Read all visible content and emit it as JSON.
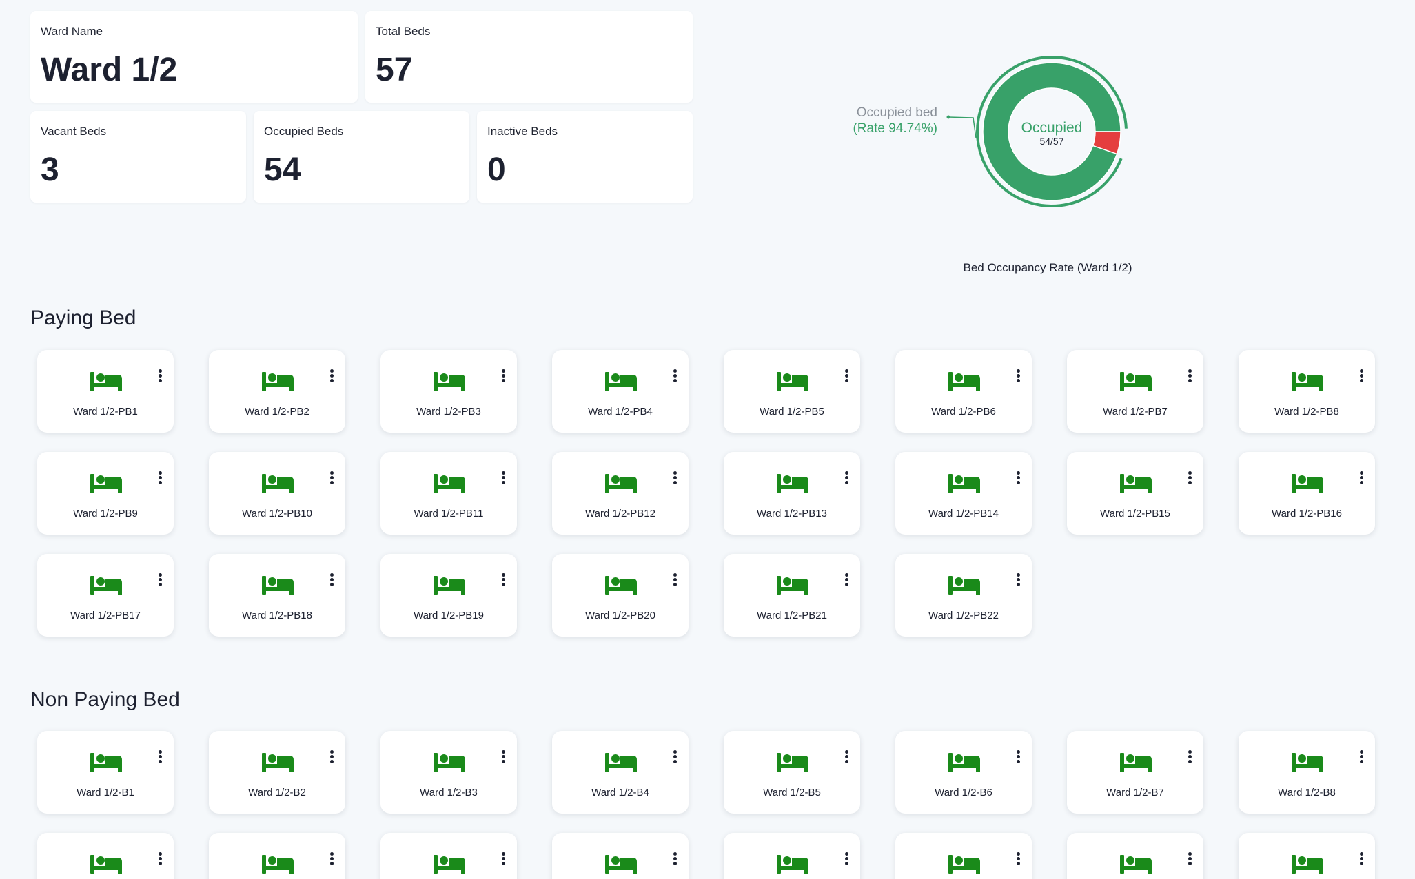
{
  "stats": {
    "ward_name": {
      "label": "Ward Name",
      "value": "Ward 1/2"
    },
    "total_beds": {
      "label": "Total Beds",
      "value": "57"
    },
    "vacant_beds": {
      "label": "Vacant Beds",
      "value": "3"
    },
    "occupied_beds": {
      "label": "Occupied Beds",
      "value": "54"
    },
    "inactive_beds": {
      "label": "Inactive Beds",
      "value": "0"
    }
  },
  "chart_data": {
    "type": "pie",
    "title": "Bed Occupancy Rate (Ward 1/2)",
    "center_label": "Occupied",
    "center_value": "54/57",
    "callout_label": "Occupied bed",
    "callout_rate": "(Rate 94.74%)",
    "slices": [
      {
        "name": "Occupied",
        "value": 54,
        "color": "#38a169"
      },
      {
        "name": "Vacant",
        "value": 3,
        "color": "#e53e3e"
      }
    ]
  },
  "colors": {
    "occupied": "#38a169",
    "vacant": "#e53e3e",
    "bed_icon": "#1a8a1a",
    "callout_text": "#8a9099"
  },
  "sections": {
    "paying": {
      "title": "Paying Bed",
      "beds": [
        "Ward 1/2-PB1",
        "Ward 1/2-PB2",
        "Ward 1/2-PB3",
        "Ward 1/2-PB4",
        "Ward 1/2-PB5",
        "Ward 1/2-PB6",
        "Ward 1/2-PB7",
        "Ward 1/2-PB8",
        "Ward 1/2-PB9",
        "Ward 1/2-PB10",
        "Ward 1/2-PB11",
        "Ward 1/2-PB12",
        "Ward 1/2-PB13",
        "Ward 1/2-PB14",
        "Ward 1/2-PB15",
        "Ward 1/2-PB16",
        "Ward 1/2-PB17",
        "Ward 1/2-PB18",
        "Ward 1/2-PB19",
        "Ward 1/2-PB20",
        "Ward 1/2-PB21",
        "Ward 1/2-PB22"
      ]
    },
    "non_paying": {
      "title": "Non Paying Bed",
      "beds": [
        "Ward 1/2-B1",
        "Ward 1/2-B2",
        "Ward 1/2-B3",
        "Ward 1/2-B4",
        "Ward 1/2-B5",
        "Ward 1/2-B6",
        "Ward 1/2-B7",
        "Ward 1/2-B8",
        "",
        "",
        "",
        "",
        "",
        "",
        "",
        ""
      ]
    }
  }
}
